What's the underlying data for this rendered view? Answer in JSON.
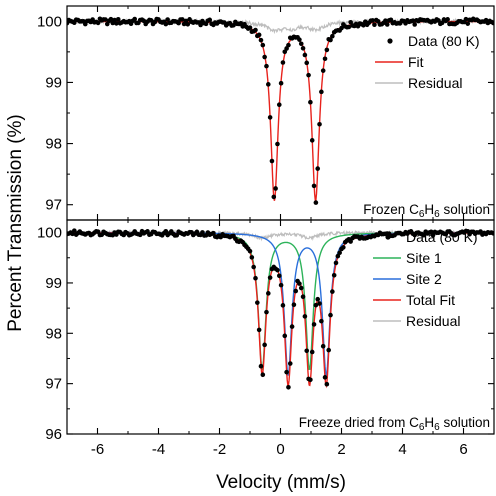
{
  "figure": {
    "ylabel": "Percent Transmission (%)",
    "xlabel": "Velocity (mm/s)"
  },
  "chart_data": [
    {
      "type": "scatter",
      "panel": "top",
      "xlim": [
        -7,
        7
      ],
      "ylim": [
        96.75,
        100.25
      ],
      "x_ticks": [
        -6,
        -4,
        -2,
        0,
        2,
        4,
        6
      ],
      "y_ticks": [
        97,
        98,
        99,
        100
      ],
      "y_tick_labels": [
        "97",
        "98",
        "99",
        "100"
      ],
      "note": {
        "prefix": "Frozen C",
        "sub1": "6",
        "mid": "H",
        "sub2": "6",
        "suffix": " solution"
      },
      "components": [
        {
          "role": "data",
          "name": "Data (80 K)",
          "color": "#000000",
          "baseline": 100.0,
          "lines": [
            {
              "center": -0.2,
              "hwhm": 0.15,
              "depth": 2.9
            },
            {
              "center": 1.15,
              "hwhm": 0.15,
              "depth": 2.9
            }
          ]
        },
        {
          "role": "fit",
          "name": "Fit",
          "color": "#e8231d",
          "baseline": 100.0,
          "lines": [
            {
              "center": -0.2,
              "hwhm": 0.15,
              "depth": 2.9
            },
            {
              "center": 1.15,
              "hwhm": 0.15,
              "depth": 2.9
            }
          ]
        },
        {
          "role": "residual",
          "name": "Residual",
          "color": "#bdbdbd",
          "baseline": 100.0,
          "lines": [
            {
              "center": -0.2,
              "hwhm": 0.35,
              "depth": 0.12
            },
            {
              "center": 0.35,
              "hwhm": 0.35,
              "depth": 0.08
            },
            {
              "center": 1.15,
              "hwhm": 0.35,
              "depth": 0.12
            }
          ]
        }
      ]
    },
    {
      "type": "scatter",
      "panel": "bottom",
      "xlim": [
        -7,
        7
      ],
      "ylim": [
        96.0,
        100.25
      ],
      "x_ticks": [
        -6,
        -4,
        -2,
        0,
        2,
        4,
        6
      ],
      "x_tick_labels": [
        "-6",
        "-4",
        "-2",
        "0",
        "2",
        "4",
        "6"
      ],
      "y_ticks": [
        96,
        97,
        98,
        99,
        100
      ],
      "y_tick_labels": [
        "96",
        "97",
        "98",
        "99",
        "100"
      ],
      "note": {
        "prefix": "Freeze dried from C",
        "sub1": "6",
        "mid": "H",
        "sub2": "6",
        "suffix": " solution"
      },
      "components": [
        {
          "role": "data",
          "name": "Data (80 K)",
          "color": "#000000",
          "baseline": 100.0,
          "lines": [
            {
              "center": -0.6,
              "hwhm": 0.15,
              "depth": 2.7
            },
            {
              "center": 0.95,
              "hwhm": 0.15,
              "depth": 2.7
            },
            {
              "center": 0.25,
              "hwhm": 0.15,
              "depth": 2.8
            },
            {
              "center": 1.5,
              "hwhm": 0.15,
              "depth": 2.8
            }
          ]
        },
        {
          "role": "site",
          "name": "Site 1",
          "color": "#2db35a",
          "baseline": 100.0,
          "lines": [
            {
              "center": -0.6,
              "hwhm": 0.15,
              "depth": 2.7
            },
            {
              "center": 0.95,
              "hwhm": 0.15,
              "depth": 2.7
            }
          ]
        },
        {
          "role": "site",
          "name": "Site 2",
          "color": "#2a6fdb",
          "baseline": 100.0,
          "lines": [
            {
              "center": 0.25,
              "hwhm": 0.15,
              "depth": 2.8
            },
            {
              "center": 1.5,
              "hwhm": 0.15,
              "depth": 2.8
            }
          ]
        },
        {
          "role": "fit",
          "name": "Total Fit",
          "color": "#e8231d",
          "baseline": 100.0,
          "lines": [
            {
              "center": -0.6,
              "hwhm": 0.15,
              "depth": 2.7
            },
            {
              "center": 0.95,
              "hwhm": 0.15,
              "depth": 2.7
            },
            {
              "center": 0.25,
              "hwhm": 0.15,
              "depth": 2.8
            },
            {
              "center": 1.5,
              "hwhm": 0.15,
              "depth": 2.8
            }
          ]
        },
        {
          "role": "residual",
          "name": "Residual",
          "color": "#bdbdbd",
          "baseline": 100.0,
          "lines": [
            {
              "center": -0.6,
              "hwhm": 0.35,
              "depth": 0.1
            },
            {
              "center": 0.95,
              "hwhm": 0.35,
              "depth": 0.1
            }
          ]
        }
      ]
    }
  ]
}
